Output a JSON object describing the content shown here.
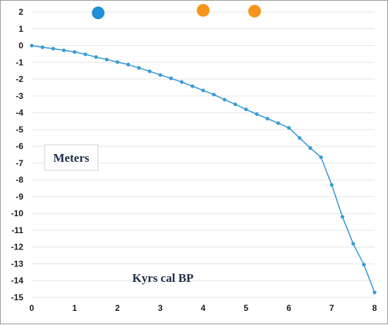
{
  "chart_data": {
    "type": "line",
    "x_label": "Kyrs cal BP",
    "y_label": "Meters",
    "xlim": [
      0,
      8
    ],
    "ylim": [
      -15,
      2
    ],
    "x_ticks": [
      "0",
      "1",
      "2",
      "3",
      "4",
      "5",
      "6",
      "7",
      "8"
    ],
    "y_ticks": [
      "2",
      "1",
      "0",
      "-1",
      "-2",
      "-3",
      "-4",
      "-5",
      "-6",
      "-7",
      "-8",
      "-9",
      "-10",
      "-11",
      "-12",
      "-13",
      "-14",
      "-15"
    ],
    "grid": "horizontal",
    "line_color": "#3a9bd5",
    "series": [
      {
        "x": [
          0,
          0.25,
          0.5,
          0.75,
          1.0,
          1.25,
          1.5,
          1.75,
          2.0,
          2.25,
          2.5,
          2.75,
          3.0,
          3.25,
          3.5,
          3.75,
          4.0,
          4.25,
          4.5,
          4.75,
          5.0,
          5.25,
          5.5,
          5.75,
          6.0,
          6.25,
          6.5,
          6.75,
          7.0,
          7.25,
          7.5,
          7.75,
          8.0
        ],
        "y": [
          0,
          -0.1,
          -0.18,
          -0.28,
          -0.38,
          -0.52,
          -0.68,
          -0.83,
          -0.98,
          -1.13,
          -1.33,
          -1.53,
          -1.75,
          -1.95,
          -2.17,
          -2.42,
          -2.67,
          -2.92,
          -3.22,
          -3.5,
          -3.8,
          -4.08,
          -4.35,
          -4.62,
          -4.9,
          -5.5,
          -6.1,
          -6.65,
          -8.3,
          -10.2,
          -11.8,
          -13.05,
          -14.7
        ]
      }
    ],
    "markers": [
      {
        "x": 1.55,
        "y": 1.95,
        "color": "#1f8fd6"
      },
      {
        "x": 4.0,
        "y": 2.1,
        "color": "#f7941d"
      },
      {
        "x": 5.2,
        "y": 2.05,
        "color": "#f7941d"
      }
    ]
  }
}
